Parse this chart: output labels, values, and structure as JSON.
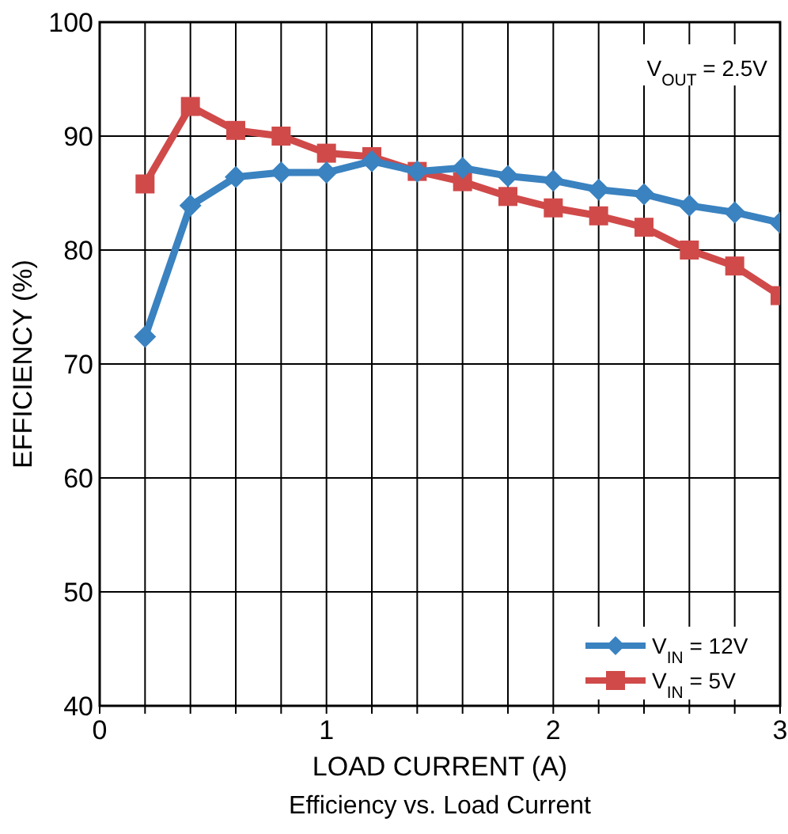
{
  "chart_data": {
    "type": "line",
    "title": "Efficiency vs. Load Current",
    "xlabel": "LOAD CURRENT (A)",
    "ylabel": "EFFICIENCY (%)",
    "annotations": [
      "V$_{OUT}$ = 2.5V"
    ],
    "x": [
      0.2,
      0.4,
      0.6,
      0.8,
      1.0,
      1.2,
      1.4,
      1.6,
      1.8,
      2.0,
      2.2,
      2.4,
      2.6,
      2.8,
      3.0
    ],
    "series": [
      {
        "name": "V$_{IN}$ = 12V",
        "color": "#3a82c0",
        "marker": "diamond",
        "values": [
          72.4,
          83.9,
          86.4,
          86.8,
          86.8,
          87.8,
          86.9,
          87.2,
          86.5,
          86.1,
          85.3,
          84.9,
          83.9,
          83.3,
          82.4
        ]
      },
      {
        "name": "V$_{IN}$ = 5V",
        "color": "#d04a4a",
        "marker": "square",
        "values": [
          85.8,
          92.6,
          90.5,
          90.0,
          88.5,
          88.2,
          86.9,
          86.0,
          84.7,
          83.7,
          83.0,
          82.0,
          80.0,
          78.6,
          76.0
        ]
      }
    ],
    "xlim": [
      0,
      3
    ],
    "xticks": [
      0,
      {
        "value": 0.2,
        "label": null
      },
      {
        "value": 0.4,
        "label": null
      },
      {
        "value": 0.6,
        "label": null
      },
      {
        "value": 0.8,
        "label": null
      },
      1,
      {
        "value": 1.2,
        "label": null
      },
      {
        "value": 1.4,
        "label": null
      },
      {
        "value": 1.6,
        "label": null
      },
      {
        "value": 1.8,
        "label": null
      },
      2,
      {
        "value": 2.2,
        "label": null
      },
      {
        "value": 2.4,
        "label": null
      },
      {
        "value": 2.6,
        "label": null
      },
      {
        "value": 2.8,
        "label": null
      },
      3
    ],
    "ylim": [
      40,
      100
    ],
    "yticks": [
      40,
      50,
      60,
      70,
      80,
      90,
      100
    ],
    "grid": true,
    "legend": "bottom right",
    "line_style": "solid"
  }
}
